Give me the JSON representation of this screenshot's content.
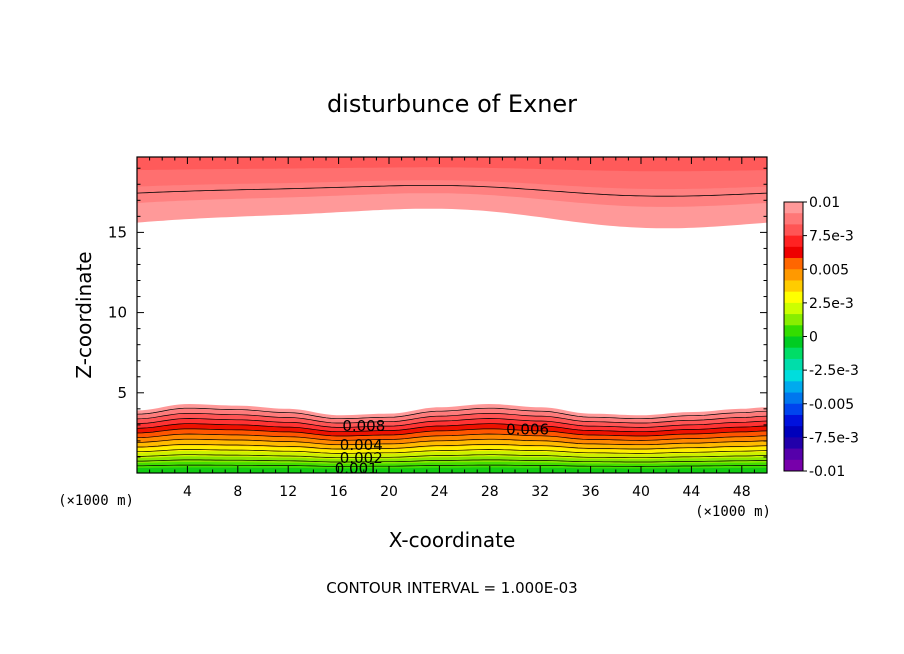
{
  "chart_data": {
    "type": "heatmap",
    "title": "disturbunce of Exner",
    "xlabel": "X-coordinate",
    "ylabel": "Z-coordinate",
    "x_unit": "(×1000 m)",
    "y_unit": "(×1000 m)",
    "xlim": [
      0,
      50
    ],
    "ylim": [
      0,
      19.7
    ],
    "x_ticks": [
      "4",
      "8",
      "12",
      "16",
      "20",
      "24",
      "28",
      "32",
      "36",
      "40",
      "44",
      "48"
    ],
    "y_ticks": [
      "5",
      "10",
      "15"
    ],
    "footer": "CONTOUR INTERVAL = 1.000E-03",
    "contour_labels": [
      "0.008",
      "0.006",
      "0.004",
      "0.002",
      "0.001"
    ],
    "colorbar": {
      "labels": [
        "0.01",
        "7.5e-3",
        "0.005",
        "2.5e-3",
        "0",
        "-2.5e-3",
        "-0.005",
        "-7.5e-3",
        "-0.01"
      ],
      "colors": [
        "#ff9999",
        "#ff7777",
        "#ff5555",
        "#ff2222",
        "#ee0000",
        "#ff6600",
        "#ff9900",
        "#ffcc00",
        "#ffff00",
        "#ccff00",
        "#88ee00",
        "#33dd00",
        "#00cc22",
        "#00dd66",
        "#00ddaa",
        "#00dddd",
        "#00aaee",
        "#0077ee",
        "#0044ee",
        "#0011dd",
        "#0000bb",
        "#2200aa",
        "#5500aa",
        "#7700aa"
      ]
    },
    "surface_profile_x": [
      0,
      4,
      8,
      12,
      16,
      20,
      24,
      28,
      32,
      36,
      40,
      44,
      48,
      50
    ],
    "surface_profile_z": [
      3.9,
      4.3,
      4.2,
      4.0,
      3.6,
      3.7,
      4.1,
      4.3,
      4.1,
      3.7,
      3.6,
      3.8,
      4.0,
      4.1
    ]
  }
}
